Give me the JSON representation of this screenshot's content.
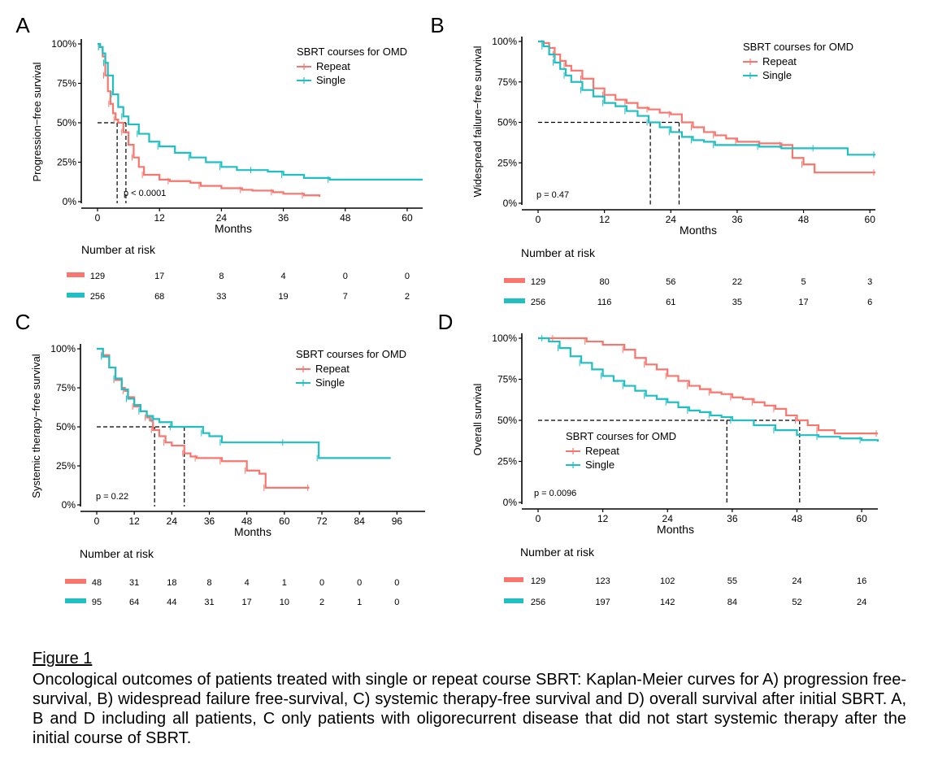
{
  "colors": {
    "repeat": "#f8766d",
    "single": "#1fbfc4",
    "axis": "#000000",
    "dashed": "#000000"
  },
  "caption": {
    "title": "Figure 1",
    "text": "Oncological outcomes of patients treated with single or repeat course SBRT: Kaplan-Meier curves for A) progression free-survival, B) widespread failure free-survival, C) systemic therapy-free survival and D) overall survival after initial SBRT. A, B and D including all patients, C only patients with oligorecurrent disease that did not start systemic therapy after the initial course of SBRT."
  },
  "chart_data": [
    {
      "type": "line",
      "panel_label": "A",
      "xlabel": "Months",
      "ylabel": "Progression−free survival",
      "xticks": [
        0,
        12,
        24,
        36,
        48,
        60
      ],
      "xlim": [
        0,
        63
      ],
      "yticks": [
        "0%",
        "25%",
        "50%",
        "75%",
        "100%"
      ],
      "ylim": [
        0,
        1
      ],
      "legend_title": "SBRT courses for OMD",
      "pvalue": "p < 0.0001",
      "medians": [
        3.8,
        5.5
      ],
      "series": [
        {
          "name": "Repeat",
          "color_key": "repeat",
          "x": [
            0,
            0.5,
            1,
            1.5,
            2,
            2.5,
            3,
            3.5,
            4,
            5,
            6,
            7,
            8,
            9,
            12,
            14,
            18,
            20,
            24,
            28,
            30,
            34,
            36,
            40,
            43
          ],
          "y": [
            1,
            0.98,
            0.92,
            0.8,
            0.7,
            0.62,
            0.56,
            0.52,
            0.5,
            0.44,
            0.36,
            0.28,
            0.22,
            0.17,
            0.14,
            0.13,
            0.12,
            0.1,
            0.085,
            0.075,
            0.07,
            0.06,
            0.05,
            0.04,
            0.03
          ]
        },
        {
          "name": "Single",
          "color_key": "single",
          "x": [
            0,
            0.5,
            1,
            1.5,
            2,
            3,
            4,
            5,
            6,
            8,
            10,
            12,
            15,
            18,
            21,
            24,
            27,
            30,
            33,
            36,
            40,
            45,
            63
          ],
          "y": [
            1,
            0.98,
            0.94,
            0.88,
            0.8,
            0.68,
            0.6,
            0.54,
            0.49,
            0.43,
            0.38,
            0.35,
            0.31,
            0.28,
            0.25,
            0.22,
            0.2,
            0.2,
            0.19,
            0.17,
            0.15,
            0.14,
            0.14
          ]
        }
      ],
      "risk_table": {
        "title": "Number at risk",
        "times": [
          0,
          12,
          24,
          36,
          48,
          60
        ],
        "rows": [
          {
            "color_key": "repeat",
            "values": [
              "129",
              "17",
              "8",
              "4",
              "0",
              "0"
            ]
          },
          {
            "color_key": "single",
            "values": [
              "256",
              "68",
              "33",
              "19",
              "7",
              "2"
            ]
          }
        ]
      }
    },
    {
      "type": "line",
      "panel_label": "B",
      "xlabel": "Months",
      "ylabel": "Widespread failure−free survival",
      "xticks": [
        0,
        12,
        24,
        36,
        48,
        60
      ],
      "xlim": [
        0,
        61
      ],
      "yticks": [
        "0%",
        "25%",
        "50%",
        "75%",
        "100%"
      ],
      "ylim": [
        0,
        1
      ],
      "legend_title": "SBRT courses for OMD",
      "pvalue": "p = 0.47",
      "medians": [
        25.5,
        20.3
      ],
      "series": [
        {
          "name": "Repeat",
          "color_key": "repeat",
          "x": [
            0,
            1,
            2,
            3,
            4,
            5,
            6,
            8,
            10,
            12,
            14,
            16,
            18,
            20,
            22,
            24,
            26,
            28,
            30,
            32,
            34,
            36,
            40,
            44,
            46,
            48,
            50,
            61
          ],
          "y": [
            1,
            0.99,
            0.96,
            0.92,
            0.88,
            0.85,
            0.82,
            0.77,
            0.71,
            0.67,
            0.64,
            0.62,
            0.59,
            0.58,
            0.56,
            0.55,
            0.5,
            0.47,
            0.44,
            0.42,
            0.4,
            0.38,
            0.37,
            0.36,
            0.28,
            0.24,
            0.19,
            0.19
          ]
        },
        {
          "name": "Single",
          "color_key": "single",
          "x": [
            0,
            1,
            2,
            3,
            4,
            5,
            6,
            8,
            10,
            12,
            14,
            16,
            18,
            20,
            22,
            24,
            26,
            28,
            30,
            32,
            36,
            40,
            44,
            50,
            56,
            61
          ],
          "y": [
            1,
            0.97,
            0.92,
            0.87,
            0.83,
            0.79,
            0.75,
            0.7,
            0.66,
            0.62,
            0.6,
            0.57,
            0.54,
            0.5,
            0.47,
            0.44,
            0.41,
            0.39,
            0.38,
            0.36,
            0.36,
            0.35,
            0.34,
            0.34,
            0.3,
            0.3
          ]
        }
      ],
      "risk_table": {
        "title": "Number at risk",
        "times": [
          0,
          12,
          24,
          36,
          48,
          60
        ],
        "rows": [
          {
            "color_key": "repeat",
            "values": [
              "129",
              "80",
              "56",
              "22",
              "5",
              "3"
            ]
          },
          {
            "color_key": "single",
            "values": [
              "256",
              "116",
              "61",
              "35",
              "17",
              "6"
            ]
          }
        ]
      }
    },
    {
      "type": "line",
      "panel_label": "C",
      "xlabel": "Months",
      "ylabel": "Systemic therapy−free survival",
      "xticks": [
        0,
        12,
        24,
        36,
        48,
        60,
        72,
        84,
        96
      ],
      "xlim": [
        0,
        105
      ],
      "yticks": [
        "0%",
        "25%",
        "50%",
        "75%",
        "100%"
      ],
      "ylim": [
        0,
        1
      ],
      "legend_title": "SBRT courses for OMD",
      "pvalue": "p = 0.22",
      "medians": [
        18.5,
        28
      ],
      "series": [
        {
          "name": "Repeat",
          "color_key": "repeat",
          "x": [
            0,
            2,
            4,
            6,
            8,
            9,
            10,
            12,
            14,
            16,
            17,
            18,
            20,
            22,
            24,
            28,
            30,
            32,
            36,
            40,
            44,
            48,
            52,
            54,
            58,
            68
          ],
          "y": [
            1,
            0.96,
            0.88,
            0.8,
            0.75,
            0.73,
            0.69,
            0.63,
            0.6,
            0.56,
            0.54,
            0.48,
            0.44,
            0.4,
            0.38,
            0.33,
            0.31,
            0.3,
            0.3,
            0.28,
            0.28,
            0.22,
            0.2,
            0.11,
            0.11,
            0.11
          ]
        },
        {
          "name": "Single",
          "color_key": "single",
          "x": [
            0,
            2,
            4,
            6,
            8,
            10,
            12,
            14,
            16,
            18,
            20,
            24,
            28,
            34,
            36,
            40,
            48,
            60,
            70,
            71,
            94
          ],
          "y": [
            1,
            0.95,
            0.88,
            0.81,
            0.74,
            0.68,
            0.64,
            0.6,
            0.57,
            0.55,
            0.53,
            0.5,
            0.5,
            0.46,
            0.44,
            0.4,
            0.4,
            0.4,
            0.4,
            0.3,
            0.3
          ]
        }
      ],
      "risk_table": {
        "title": "Number at risk",
        "times": [
          0,
          12,
          24,
          36,
          48,
          60,
          72,
          84,
          96
        ],
        "rows": [
          {
            "color_key": "repeat",
            "values": [
              "48",
              "31",
              "18",
              "8",
              "4",
              "1",
              "0",
              "0",
              "0"
            ]
          },
          {
            "color_key": "single",
            "values": [
              "95",
              "64",
              "44",
              "31",
              "17",
              "10",
              "2",
              "1",
              "0"
            ]
          }
        ]
      }
    },
    {
      "type": "line",
      "panel_label": "D",
      "xlabel": "Months",
      "ylabel": "Overall survival",
      "xticks": [
        0,
        12,
        24,
        36,
        48,
        60
      ],
      "xlim": [
        0,
        63
      ],
      "yticks": [
        "0%",
        "25%",
        "50%",
        "75%",
        "100%"
      ],
      "ylim": [
        0,
        1
      ],
      "legend_title": "SBRT courses for OMD",
      "pvalue": "p = 0.0096",
      "medians": [
        48.5,
        35
      ],
      "series": [
        {
          "name": "Repeat",
          "color_key": "repeat",
          "x": [
            0,
            3,
            6,
            9,
            12,
            16,
            18,
            20,
            22,
            24,
            26,
            28,
            30,
            32,
            34,
            36,
            38,
            40,
            42,
            44,
            46,
            48,
            50,
            52,
            55,
            63
          ],
          "y": [
            1,
            1,
            1,
            0.98,
            0.96,
            0.93,
            0.88,
            0.84,
            0.81,
            0.77,
            0.74,
            0.71,
            0.69,
            0.67,
            0.66,
            0.64,
            0.63,
            0.61,
            0.59,
            0.57,
            0.53,
            0.5,
            0.47,
            0.44,
            0.42,
            0.42
          ]
        },
        {
          "name": "Single",
          "color_key": "single",
          "x": [
            0,
            1,
            2,
            4,
            6,
            8,
            10,
            12,
            14,
            16,
            18,
            20,
            22,
            24,
            26,
            28,
            30,
            32,
            34,
            36,
            40,
            44,
            48,
            52,
            56,
            60,
            63
          ],
          "y": [
            1,
            1,
            0.98,
            0.94,
            0.89,
            0.85,
            0.81,
            0.77,
            0.74,
            0.71,
            0.68,
            0.65,
            0.63,
            0.61,
            0.58,
            0.56,
            0.55,
            0.53,
            0.52,
            0.5,
            0.47,
            0.44,
            0.41,
            0.4,
            0.39,
            0.38,
            0.37
          ]
        }
      ],
      "risk_table": {
        "title": "Number at risk",
        "times": [
          0,
          12,
          24,
          36,
          48,
          60
        ],
        "rows": [
          {
            "color_key": "repeat",
            "values": [
              "129",
              "123",
              "102",
              "55",
              "24",
              "16"
            ]
          },
          {
            "color_key": "single",
            "values": [
              "256",
              "197",
              "142",
              "84",
              "52",
              "24"
            ]
          }
        ]
      }
    }
  ]
}
